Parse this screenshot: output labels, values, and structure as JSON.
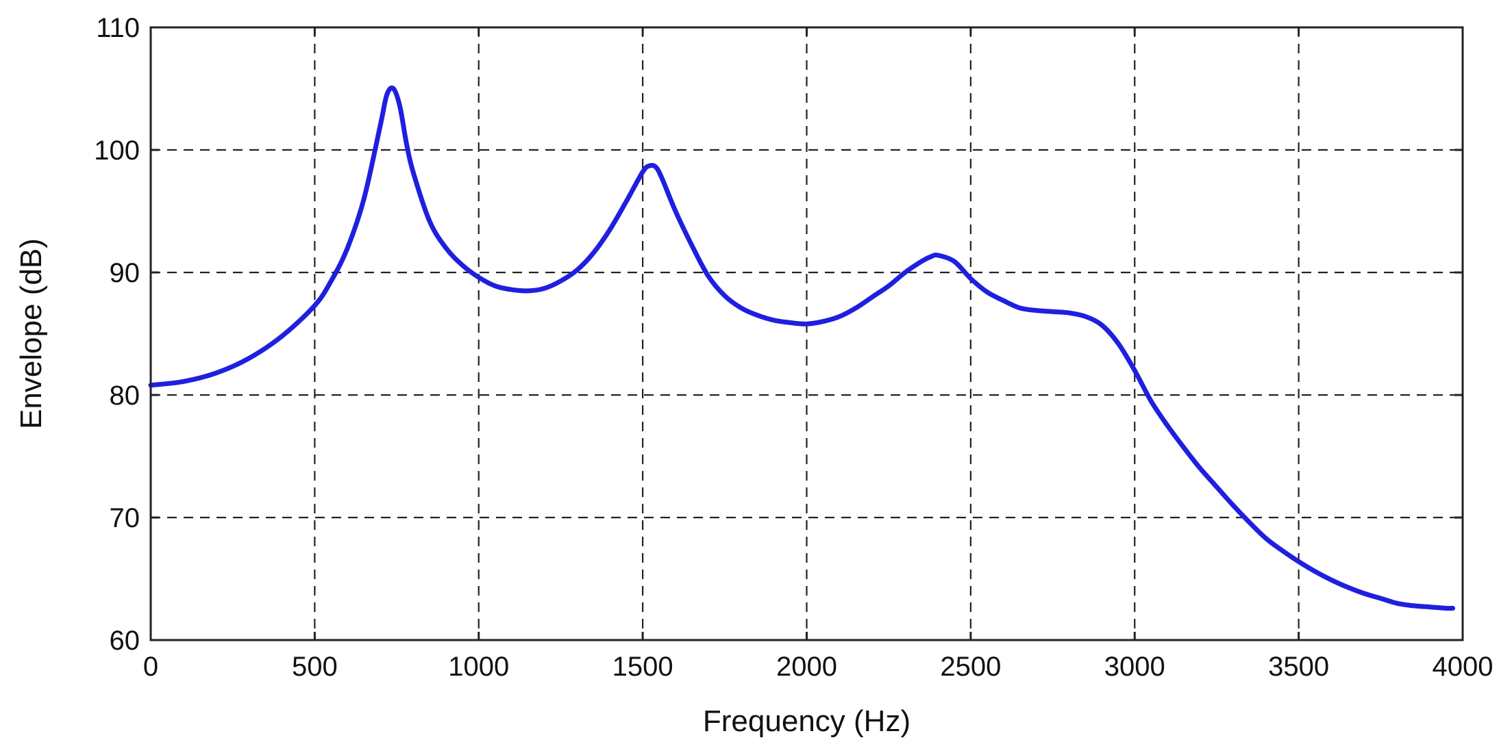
{
  "chart_data": {
    "type": "line",
    "xlabel": "Frequency (Hz)",
    "ylabel": "Envelope (dB)",
    "xlim": [
      0,
      4000
    ],
    "ylim": [
      60,
      110
    ],
    "xticks": [
      0,
      500,
      1000,
      1500,
      2000,
      2500,
      3000,
      3500,
      4000
    ],
    "yticks": [
      60,
      70,
      80,
      90,
      100,
      110
    ],
    "grid": true,
    "legend": "none",
    "series_color": "#1f1fe0",
    "series": [
      {
        "x": [
          0,
          100,
          200,
          300,
          400,
          500,
          550,
          600,
          650,
          700,
          720,
          740,
          760,
          780,
          800,
          850,
          900,
          950,
          1000,
          1050,
          1100,
          1150,
          1200,
          1250,
          1300,
          1350,
          1400,
          1450,
          1500,
          1520,
          1540,
          1560,
          1600,
          1650,
          1700,
          1750,
          1800,
          1850,
          1900,
          1950,
          2000,
          2050,
          2100,
          2150,
          2200,
          2250,
          2300,
          2350,
          2380,
          2400,
          2450,
          2500,
          2550,
          2600,
          2650,
          2700,
          2750,
          2800,
          2850,
          2900,
          2950,
          3000,
          3050,
          3100,
          3150,
          3200,
          3250,
          3300,
          3350,
          3400,
          3450,
          3500,
          3550,
          3600,
          3650,
          3700,
          3750,
          3800,
          3850,
          3900,
          3950,
          3970
        ],
        "y": [
          80.8,
          81.1,
          81.8,
          83.0,
          84.8,
          87.3,
          89.3,
          92.0,
          96.0,
          102.0,
          104.5,
          105.0,
          103.5,
          100.5,
          98.2,
          94.2,
          92.0,
          90.6,
          89.6,
          88.9,
          88.6,
          88.5,
          88.7,
          89.3,
          90.2,
          91.6,
          93.5,
          95.8,
          98.2,
          98.7,
          98.6,
          97.6,
          95.0,
          92.2,
          89.7,
          88.1,
          87.1,
          86.5,
          86.1,
          85.9,
          85.8,
          86.0,
          86.4,
          87.1,
          88.0,
          88.9,
          90.0,
          90.9,
          91.3,
          91.4,
          90.9,
          89.5,
          88.4,
          87.7,
          87.1,
          86.9,
          86.8,
          86.7,
          86.4,
          85.7,
          84.2,
          82.0,
          79.5,
          77.5,
          75.7,
          74.0,
          72.5,
          71.0,
          69.6,
          68.3,
          67.3,
          66.4,
          65.6,
          64.9,
          64.3,
          63.8,
          63.4,
          63.0,
          62.8,
          62.7,
          62.6,
          62.6
        ]
      }
    ]
  }
}
